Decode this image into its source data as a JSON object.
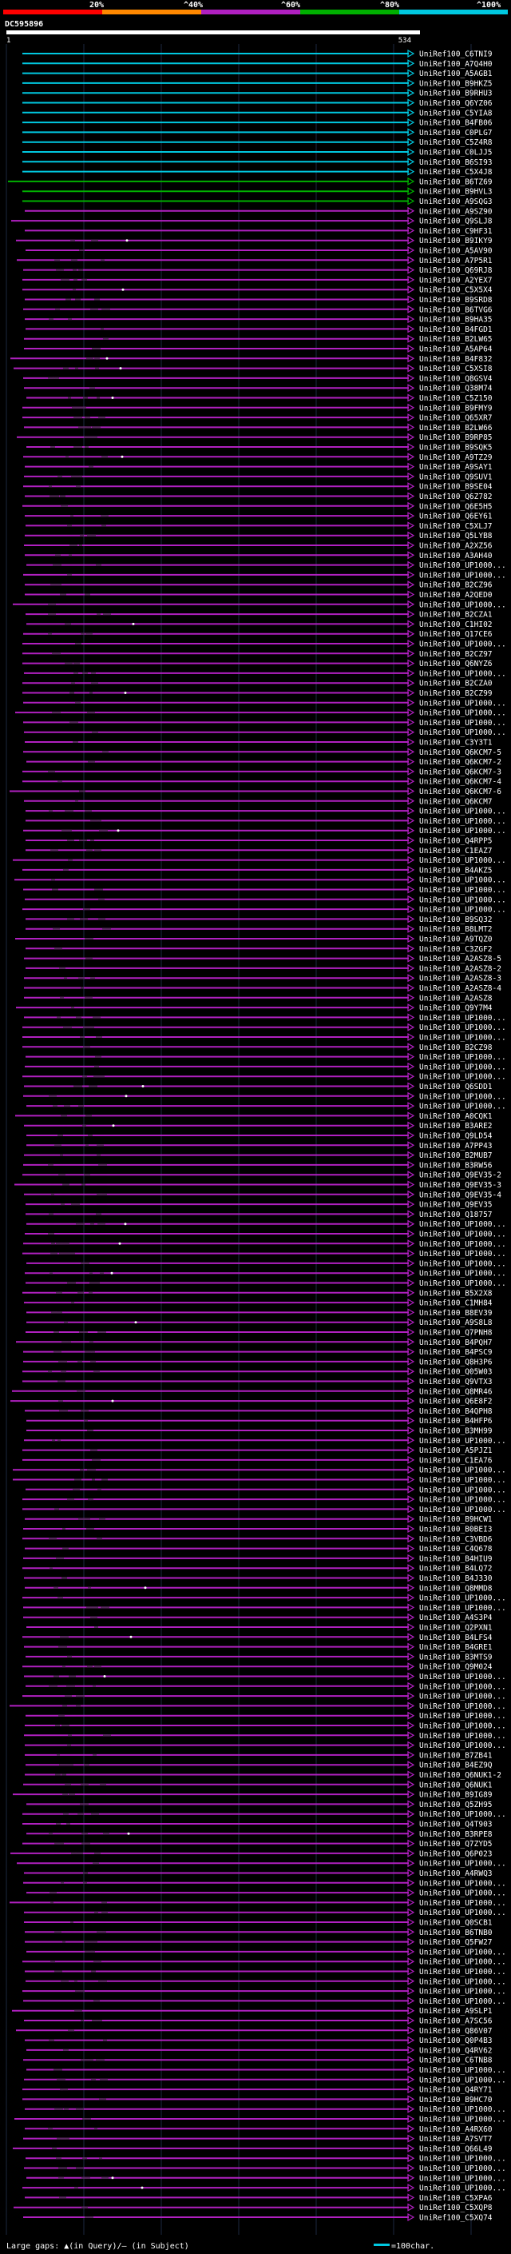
{
  "scale": {
    "labels": [
      "20%",
      "^40%",
      "^60%",
      "^80%",
      "^100%"
    ],
    "colors": [
      "#ff0000",
      "#ff8800",
      "#b020c0",
      "#00b000",
      "#00c8e0"
    ]
  },
  "query": {
    "name": "DC595896",
    "start": "1",
    "end": "534"
  },
  "hits": [
    {
      "label": "UniRef100_C6TNI9",
      "color": "#00c8e0"
    },
    {
      "label": "UniRef100_A7Q4H0",
      "color": "#00c8e0"
    },
    {
      "label": "UniRef100_A5AGB1",
      "color": "#00c8e0"
    },
    {
      "label": "UniRef100_B9HKZ5",
      "color": "#00c8e0"
    },
    {
      "label": "UniRef100_B9RHU3",
      "color": "#00c8e0"
    },
    {
      "label": "UniRef100_Q6YZ06",
      "color": "#00c8e0"
    },
    {
      "label": "UniRef100_C5YIA8",
      "color": "#00c8e0"
    },
    {
      "label": "UniRef100_B4FB06",
      "color": "#00c8e0"
    },
    {
      "label": "UniRef100_C0PLG7",
      "color": "#00c8e0"
    },
    {
      "label": "UniRef100_C5Z4R8",
      "color": "#00c8e0"
    },
    {
      "label": "UniRef100_C0LJJ5",
      "color": "#00c8e0"
    },
    {
      "label": "UniRef100_B6SI93",
      "color": "#00c8e0"
    },
    {
      "label": "UniRef100_C5X4J8",
      "color": "#00c8e0"
    },
    {
      "label": "UniRef100_B6TZ69",
      "color": "#00b000"
    },
    {
      "label": "UniRef100_B9HVL3",
      "color": "#00b000"
    },
    {
      "label": "UniRef100_A9SQG3",
      "color": "#00b000"
    },
    {
      "label": "UniRef100_A9SZ90",
      "color": "#b020c0"
    },
    {
      "label": "UniRef100_Q9SLJ8",
      "color": "#b020c0"
    },
    {
      "label": "UniRef100_C9HF31",
      "color": "#b020c0"
    },
    {
      "label": "UniRef100_B9IKY9",
      "color": "#b020c0"
    },
    {
      "label": "UniRef100_A5AV90",
      "color": "#b020c0"
    },
    {
      "label": "UniRef100_A7P5R1",
      "color": "#b020c0"
    },
    {
      "label": "UniRef100_Q69RJ8",
      "color": "#b020c0"
    },
    {
      "label": "UniRef100_A2YEX7",
      "color": "#b020c0"
    },
    {
      "label": "UniRef100_C5X5X4",
      "color": "#b020c0"
    },
    {
      "label": "UniRef100_B9SRD8",
      "color": "#b020c0"
    },
    {
      "label": "UniRef100_B6TVG6",
      "color": "#b020c0"
    },
    {
      "label": "UniRef100_B9HA35",
      "color": "#b020c0"
    },
    {
      "label": "UniRef100_B4FGD1",
      "color": "#b020c0"
    },
    {
      "label": "UniRef100_B2LW65",
      "color": "#b020c0"
    },
    {
      "label": "UniRef100_A5AP64",
      "color": "#b020c0"
    },
    {
      "label": "UniRef100_B4F832",
      "color": "#b020c0"
    },
    {
      "label": "UniRef100_C5XSI8",
      "color": "#b020c0"
    },
    {
      "label": "UniRef100_Q8GSV4",
      "color": "#b020c0"
    },
    {
      "label": "UniRef100_Q38M74",
      "color": "#b020c0"
    },
    {
      "label": "UniRef100_C5Z150",
      "color": "#b020c0"
    },
    {
      "label": "UniRef100_B9FMY9",
      "color": "#b020c0"
    },
    {
      "label": "UniRef100_Q65XR7",
      "color": "#b020c0"
    },
    {
      "label": "UniRef100_B2LW66",
      "color": "#b020c0"
    },
    {
      "label": "UniRef100_B9RP85",
      "color": "#b020c0"
    },
    {
      "label": "UniRef100_B9SQK5",
      "color": "#b020c0"
    },
    {
      "label": "UniRef100_A9TZ29",
      "color": "#b020c0"
    },
    {
      "label": "UniRef100_A9SAY1",
      "color": "#b020c0"
    },
    {
      "label": "UniRef100_Q9SUV1",
      "color": "#b020c0"
    },
    {
      "label": "UniRef100_B9SE04",
      "color": "#b020c0"
    },
    {
      "label": "UniRef100_Q6Z782",
      "color": "#b020c0"
    },
    {
      "label": "UniRef100_Q6E5H5",
      "color": "#b020c0"
    },
    {
      "label": "UniRef100_Q6EY61",
      "color": "#b020c0"
    },
    {
      "label": "UniRef100_C5XLJ7",
      "color": "#b020c0"
    },
    {
      "label": "UniRef100_Q5LYB8",
      "color": "#b020c0"
    },
    {
      "label": "UniRef100_A2XZ56",
      "color": "#b020c0"
    },
    {
      "label": "UniRef100_A3AH40",
      "color": "#b020c0"
    },
    {
      "label": "UniRef100_UP1000...",
      "color": "#b020c0"
    },
    {
      "label": "UniRef100_UP1000...",
      "color": "#b020c0"
    },
    {
      "label": "UniRef100_B2CZ96",
      "color": "#b020c0"
    },
    {
      "label": "UniRef100_A2QED0",
      "color": "#b020c0"
    },
    {
      "label": "UniRef100_UP1000...",
      "color": "#b020c0"
    },
    {
      "label": "UniRef100_B2CZA1",
      "color": "#b020c0"
    },
    {
      "label": "UniRef100_C1HI02",
      "color": "#b020c0"
    },
    {
      "label": "UniRef100_Q17CE6",
      "color": "#b020c0"
    },
    {
      "label": "UniRef100_UP1000...",
      "color": "#b020c0"
    },
    {
      "label": "UniRef100_B2CZ97",
      "color": "#b020c0"
    },
    {
      "label": "UniRef100_Q6NYZ6",
      "color": "#b020c0"
    },
    {
      "label": "UniRef100_UP1000...",
      "color": "#b020c0"
    },
    {
      "label": "UniRef100_B2CZA0",
      "color": "#b020c0"
    },
    {
      "label": "UniRef100_B2CZ99",
      "color": "#b020c0"
    },
    {
      "label": "UniRef100_UP1000...",
      "color": "#b020c0"
    },
    {
      "label": "UniRef100_UP1000...",
      "color": "#b020c0"
    },
    {
      "label": "UniRef100_UP1000...",
      "color": "#b020c0"
    },
    {
      "label": "UniRef100_UP1000...",
      "color": "#b020c0"
    },
    {
      "label": "UniRef100_C3Y3T1",
      "color": "#b020c0"
    },
    {
      "label": "UniRef100_Q6KCM7-5",
      "color": "#b020c0"
    },
    {
      "label": "UniRef100_Q6KCM7-2",
      "color": "#b020c0"
    },
    {
      "label": "UniRef100_Q6KCM7-3",
      "color": "#b020c0"
    },
    {
      "label": "UniRef100_Q6KCM7-4",
      "color": "#b020c0"
    },
    {
      "label": "UniRef100_Q6KCM7-6",
      "color": "#b020c0"
    },
    {
      "label": "UniRef100_Q6KCM7",
      "color": "#b020c0"
    },
    {
      "label": "UniRef100_UP1000...",
      "color": "#b020c0"
    },
    {
      "label": "UniRef100_UP1000...",
      "color": "#b020c0"
    },
    {
      "label": "UniRef100_UP1000...",
      "color": "#b020c0"
    },
    {
      "label": "UniRef100_Q4RPP5",
      "color": "#b020c0"
    },
    {
      "label": "UniRef100_C1EAZ7",
      "color": "#b020c0"
    },
    {
      "label": "UniRef100_UP1000...",
      "color": "#b020c0"
    },
    {
      "label": "UniRef100_B4AKZ5",
      "color": "#b020c0"
    },
    {
      "label": "UniRef100_UP1000...",
      "color": "#b020c0"
    },
    {
      "label": "UniRef100_UP1000...",
      "color": "#b020c0"
    },
    {
      "label": "UniRef100_UP1000...",
      "color": "#b020c0"
    },
    {
      "label": "UniRef100_UP1000...",
      "color": "#b020c0"
    },
    {
      "label": "UniRef100_B9SQ32",
      "color": "#b020c0"
    },
    {
      "label": "UniRef100_B8LMT2",
      "color": "#b020c0"
    },
    {
      "label": "UniRef100_A9TQZ0",
      "color": "#b020c0"
    },
    {
      "label": "UniRef100_C3ZGF2",
      "color": "#b020c0"
    },
    {
      "label": "UniRef100_A2ASZ8-5",
      "color": "#b020c0"
    },
    {
      "label": "UniRef100_A2ASZ8-2",
      "color": "#b020c0"
    },
    {
      "label": "UniRef100_A2ASZ8-3",
      "color": "#b020c0"
    },
    {
      "label": "UniRef100_A2ASZ8-4",
      "color": "#b020c0"
    },
    {
      "label": "UniRef100_A2ASZ8",
      "color": "#b020c0"
    },
    {
      "label": "UniRef100_Q9Y7M4",
      "color": "#b020c0"
    },
    {
      "label": "UniRef100_UP1000...",
      "color": "#b020c0"
    },
    {
      "label": "UniRef100_UP1000...",
      "color": "#b020c0"
    },
    {
      "label": "UniRef100_UP1000...",
      "color": "#b020c0"
    },
    {
      "label": "UniRef100_B2CZ98",
      "color": "#b020c0"
    },
    {
      "label": "UniRef100_UP1000...",
      "color": "#b020c0"
    },
    {
      "label": "UniRef100_UP1000...",
      "color": "#b020c0"
    },
    {
      "label": "UniRef100_UP1000...",
      "color": "#b020c0"
    },
    {
      "label": "UniRef100_Q6SDD1",
      "color": "#b020c0"
    },
    {
      "label": "UniRef100_UP1000...",
      "color": "#b020c0"
    },
    {
      "label": "UniRef100_UP1000...",
      "color": "#b020c0"
    },
    {
      "label": "UniRef100_A0CQK1",
      "color": "#b020c0"
    },
    {
      "label": "UniRef100_B3ARE2",
      "color": "#b020c0"
    },
    {
      "label": "UniRef100_Q9LD54",
      "color": "#b020c0"
    },
    {
      "label": "UniRef100_A7PP43",
      "color": "#b020c0"
    },
    {
      "label": "UniRef100_B2MUB7",
      "color": "#b020c0"
    },
    {
      "label": "UniRef100_B3RW56",
      "color": "#b020c0"
    },
    {
      "label": "UniRef100_Q9EV35-2",
      "color": "#b020c0"
    },
    {
      "label": "UniRef100_Q9EV35-3",
      "color": "#b020c0"
    },
    {
      "label": "UniRef100_Q9EV35-4",
      "color": "#b020c0"
    },
    {
      "label": "UniRef100_Q9EV35",
      "color": "#b020c0"
    },
    {
      "label": "UniRef100_Q18757",
      "color": "#b020c0"
    },
    {
      "label": "UniRef100_UP1000...",
      "color": "#b020c0"
    },
    {
      "label": "UniRef100_UP1000...",
      "color": "#b020c0"
    },
    {
      "label": "UniRef100_UP1000...",
      "color": "#b020c0"
    },
    {
      "label": "UniRef100_UP1000...",
      "color": "#b020c0"
    },
    {
      "label": "UniRef100_UP1000...",
      "color": "#b020c0"
    },
    {
      "label": "UniRef100_UP1000...",
      "color": "#b020c0"
    },
    {
      "label": "UniRef100_UP1000...",
      "color": "#b020c0"
    },
    {
      "label": "UniRef100_B5X2X8",
      "color": "#b020c0"
    },
    {
      "label": "UniRef100_C1MH84",
      "color": "#b020c0"
    },
    {
      "label": "UniRef100_B8EV39",
      "color": "#b020c0"
    },
    {
      "label": "UniRef100_A9S8L8",
      "color": "#b020c0"
    },
    {
      "label": "UniRef100_Q7PNH8",
      "color": "#b020c0"
    },
    {
      "label": "UniRef100_B4PQH7",
      "color": "#b020c0"
    },
    {
      "label": "UniRef100_B4PSC9",
      "color": "#b020c0"
    },
    {
      "label": "UniRef100_Q8H3P6",
      "color": "#b020c0"
    },
    {
      "label": "UniRef100_Q05W03",
      "color": "#b020c0"
    },
    {
      "label": "UniRef100_Q9VTX3",
      "color": "#b020c0"
    },
    {
      "label": "UniRef100_Q8MR46",
      "color": "#b020c0"
    },
    {
      "label": "UniRef100_Q6E8F2",
      "color": "#b020c0"
    },
    {
      "label": "UniRef100_B4QPH8",
      "color": "#b020c0"
    },
    {
      "label": "UniRef100_B4HFP6",
      "color": "#b020c0"
    },
    {
      "label": "UniRef100_B3MH99",
      "color": "#b020c0"
    },
    {
      "label": "UniRef100_UP1000...",
      "color": "#b020c0"
    },
    {
      "label": "UniRef100_A5PJZ1",
      "color": "#b020c0"
    },
    {
      "label": "UniRef100_C1EA76",
      "color": "#b020c0"
    },
    {
      "label": "UniRef100_UP1000...",
      "color": "#b020c0"
    },
    {
      "label": "UniRef100_UP1000...",
      "color": "#b020c0"
    },
    {
      "label": "UniRef100_UP1000...",
      "color": "#b020c0"
    },
    {
      "label": "UniRef100_UP1000...",
      "color": "#b020c0"
    },
    {
      "label": "UniRef100_UP1000...",
      "color": "#b020c0"
    },
    {
      "label": "UniRef100_B9HCW1",
      "color": "#b020c0"
    },
    {
      "label": "UniRef100_B0BEI3",
      "color": "#b020c0"
    },
    {
      "label": "UniRef100_C3VBD6",
      "color": "#b020c0"
    },
    {
      "label": "UniRef100_C4Q678",
      "color": "#b020c0"
    },
    {
      "label": "UniRef100_B4HIU9",
      "color": "#b020c0"
    },
    {
      "label": "UniRef100_B4LQ72",
      "color": "#b020c0"
    },
    {
      "label": "UniRef100_B4J330",
      "color": "#b020c0"
    },
    {
      "label": "UniRef100_Q8MMD8",
      "color": "#b020c0"
    },
    {
      "label": "UniRef100_UP1000...",
      "color": "#b020c0"
    },
    {
      "label": "UniRef100_UP1000...",
      "color": "#b020c0"
    },
    {
      "label": "UniRef100_A4S3P4",
      "color": "#b020c0"
    },
    {
      "label": "UniRef100_Q2PXN1",
      "color": "#b020c0"
    },
    {
      "label": "UniRef100_B4LFS4",
      "color": "#b020c0"
    },
    {
      "label": "UniRef100_B4GRE1",
      "color": "#b020c0"
    },
    {
      "label": "UniRef100_B3MTS9",
      "color": "#b020c0"
    },
    {
      "label": "UniRef100_Q9M024",
      "color": "#b020c0"
    },
    {
      "label": "UniRef100_UP1000...",
      "color": "#b020c0"
    },
    {
      "label": "UniRef100_UP1000...",
      "color": "#b020c0"
    },
    {
      "label": "UniRef100_UP1000...",
      "color": "#b020c0"
    },
    {
      "label": "UniRef100_UP1000...",
      "color": "#b020c0"
    },
    {
      "label": "UniRef100_UP1000...",
      "color": "#b020c0"
    },
    {
      "label": "UniRef100_UP1000...",
      "color": "#b020c0"
    },
    {
      "label": "UniRef100_UP1000...",
      "color": "#b020c0"
    },
    {
      "label": "UniRef100_UP1000...",
      "color": "#b020c0"
    },
    {
      "label": "UniRef100_B7ZB41",
      "color": "#b020c0"
    },
    {
      "label": "UniRef100_B4EZ9Q",
      "color": "#b020c0"
    },
    {
      "label": "UniRef100_Q6NUK1-2",
      "color": "#b020c0"
    },
    {
      "label": "UniRef100_Q6NUK1",
      "color": "#b020c0"
    },
    {
      "label": "UniRef100_B9IG89",
      "color": "#b020c0"
    },
    {
      "label": "UniRef100_Q5ZH95",
      "color": "#b020c0"
    },
    {
      "label": "UniRef100_UP1000...",
      "color": "#b020c0"
    },
    {
      "label": "UniRef100_Q4T903",
      "color": "#b020c0"
    },
    {
      "label": "UniRef100_B3RPE8",
      "color": "#b020c0"
    },
    {
      "label": "UniRef100_Q7ZYD5",
      "color": "#b020c0"
    },
    {
      "label": "UniRef100_Q6P023",
      "color": "#b020c0"
    },
    {
      "label": "UniRef100_UP1000...",
      "color": "#b020c0"
    },
    {
      "label": "UniRef100_A4RWQ3",
      "color": "#b020c0"
    },
    {
      "label": "UniRef100_UP1000...",
      "color": "#b020c0"
    },
    {
      "label": "UniRef100_UP1000...",
      "color": "#b020c0"
    },
    {
      "label": "UniRef100_UP1000...",
      "color": "#b020c0"
    },
    {
      "label": "UniRef100_UP1000...",
      "color": "#b020c0"
    },
    {
      "label": "UniRef100_Q0SCB1",
      "color": "#b020c0"
    },
    {
      "label": "UniRef100_B6TNB0",
      "color": "#b020c0"
    },
    {
      "label": "UniRef100_Q5FW27",
      "color": "#b020c0"
    },
    {
      "label": "UniRef100_UP1000...",
      "color": "#b020c0"
    },
    {
      "label": "UniRef100_UP1000...",
      "color": "#b020c0"
    },
    {
      "label": "UniRef100_UP1000...",
      "color": "#b020c0"
    },
    {
      "label": "UniRef100_UP1000...",
      "color": "#b020c0"
    },
    {
      "label": "UniRef100_UP1000...",
      "color": "#b020c0"
    },
    {
      "label": "UniRef100_UP1000...",
      "color": "#b020c0"
    },
    {
      "label": "UniRef100_A9SLP1",
      "color": "#b020c0"
    },
    {
      "label": "UniRef100_A7SC56",
      "color": "#b020c0"
    },
    {
      "label": "UniRef100_Q86V07",
      "color": "#b020c0"
    },
    {
      "label": "UniRef100_Q0P4B3",
      "color": "#b020c0"
    },
    {
      "label": "UniRef100_Q4RV62",
      "color": "#b020c0"
    },
    {
      "label": "UniRef100_C6TNB8",
      "color": "#b020c0"
    },
    {
      "label": "UniRef100_UP1000...",
      "color": "#b020c0"
    },
    {
      "label": "UniRef100_UP1000...",
      "color": "#b020c0"
    },
    {
      "label": "UniRef100_Q4RY71",
      "color": "#b020c0"
    },
    {
      "label": "UniRef100_B9HC70",
      "color": "#b020c0"
    },
    {
      "label": "UniRef100_UP1000...",
      "color": "#b020c0"
    },
    {
      "label": "UniRef100_UP1000...",
      "color": "#b020c0"
    },
    {
      "label": "UniRef100_A4RX60",
      "color": "#b020c0"
    },
    {
      "label": "UniRef100_A7SVT7",
      "color": "#b020c0"
    },
    {
      "label": "UniRef100_Q66L49",
      "color": "#b020c0"
    },
    {
      "label": "UniRef100_UP1000...",
      "color": "#b020c0"
    },
    {
      "label": "UniRef100_UP1000...",
      "color": "#b020c0"
    },
    {
      "label": "UniRef100_UP1000...",
      "color": "#b020c0"
    },
    {
      "label": "UniRef100_UP1000...",
      "color": "#b020c0"
    },
    {
      "label": "UniRef100_C5XPA6",
      "color": "#b020c0"
    },
    {
      "label": "UniRef100_C5XQP8",
      "color": "#b020c0"
    },
    {
      "label": "UniRef100_C5XQ74",
      "color": "#b020c0"
    }
  ],
  "footer": {
    "gaps_text": "Large gaps: ▲(in Query)/– (in Subject)",
    "legend_text": "=100char."
  }
}
